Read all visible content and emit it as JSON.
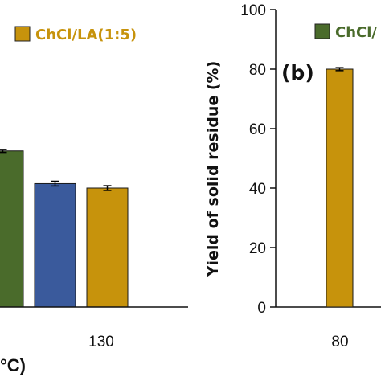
{
  "colors": {
    "green": "#4a6b2b",
    "blue": "#3a5a9c",
    "gold": "#c7930c",
    "axis": "#111111"
  },
  "chart_data": [
    {
      "type": "bar",
      "panel": "a",
      "ylim": [
        0,
        100
      ],
      "x_tick_labels": [
        "130"
      ],
      "xlabel_fragment": "°C)",
      "series": [
        {
          "color": "green",
          "values": [
            52.5
          ],
          "errors": [
            0.5
          ]
        },
        {
          "color": "blue",
          "values": [
            41.5
          ],
          "errors": [
            0.8
          ]
        },
        {
          "color": "gold",
          "values": [
            40.0
          ],
          "errors": [
            0.8
          ]
        }
      ],
      "legend": [
        {
          "label": "ChCl/LA(1:5)",
          "color": "gold"
        }
      ]
    },
    {
      "type": "bar",
      "panel": "b",
      "panel_label": "(b)",
      "ylabel": "Yield of solid residue (%)",
      "ylim": [
        0,
        100
      ],
      "y_ticks": [
        "0",
        "20",
        "40",
        "60",
        "80",
        "100"
      ],
      "x_tick_labels": [
        "80"
      ],
      "series": [
        {
          "color": "gold",
          "values": [
            80.0
          ],
          "errors": [
            0.5
          ]
        }
      ],
      "legend": [
        {
          "label": "ChCl/",
          "color": "green"
        }
      ]
    }
  ]
}
